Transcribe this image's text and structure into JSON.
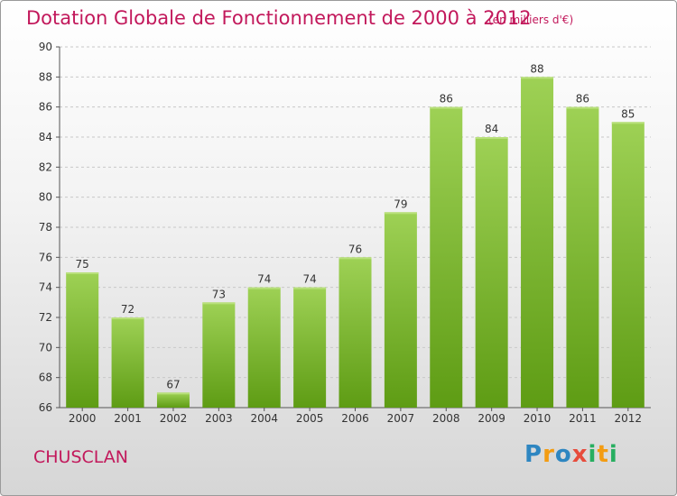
{
  "header": {
    "title": "Dotation Globale de Fonctionnement de 2000 à 2012",
    "subtitle": "(en milliers d'€)"
  },
  "footer": {
    "commune": "CHUSCLAN",
    "logo_text": "Proxiti"
  },
  "colors": {
    "title": "#c2185b",
    "bar_top": "#9ed155",
    "bar_bottom": "#5e9c14",
    "grid": "#c8c8c8"
  },
  "chart_data": {
    "type": "bar",
    "title": "Dotation Globale de Fonctionnement de 2000 à 2012",
    "subtitle": "(en milliers d'€)",
    "categories": [
      "2000",
      "2001",
      "2002",
      "2003",
      "2004",
      "2005",
      "2006",
      "2007",
      "2008",
      "2009",
      "2010",
      "2011",
      "2012"
    ],
    "values": [
      75,
      72,
      67,
      73,
      74,
      74,
      76,
      79,
      86,
      84,
      88,
      86,
      85
    ],
    "ylim": [
      66,
      90
    ],
    "yticks": [
      66,
      68,
      70,
      72,
      74,
      76,
      78,
      80,
      82,
      84,
      86,
      88,
      90
    ],
    "grid": true,
    "data_labels": true
  }
}
